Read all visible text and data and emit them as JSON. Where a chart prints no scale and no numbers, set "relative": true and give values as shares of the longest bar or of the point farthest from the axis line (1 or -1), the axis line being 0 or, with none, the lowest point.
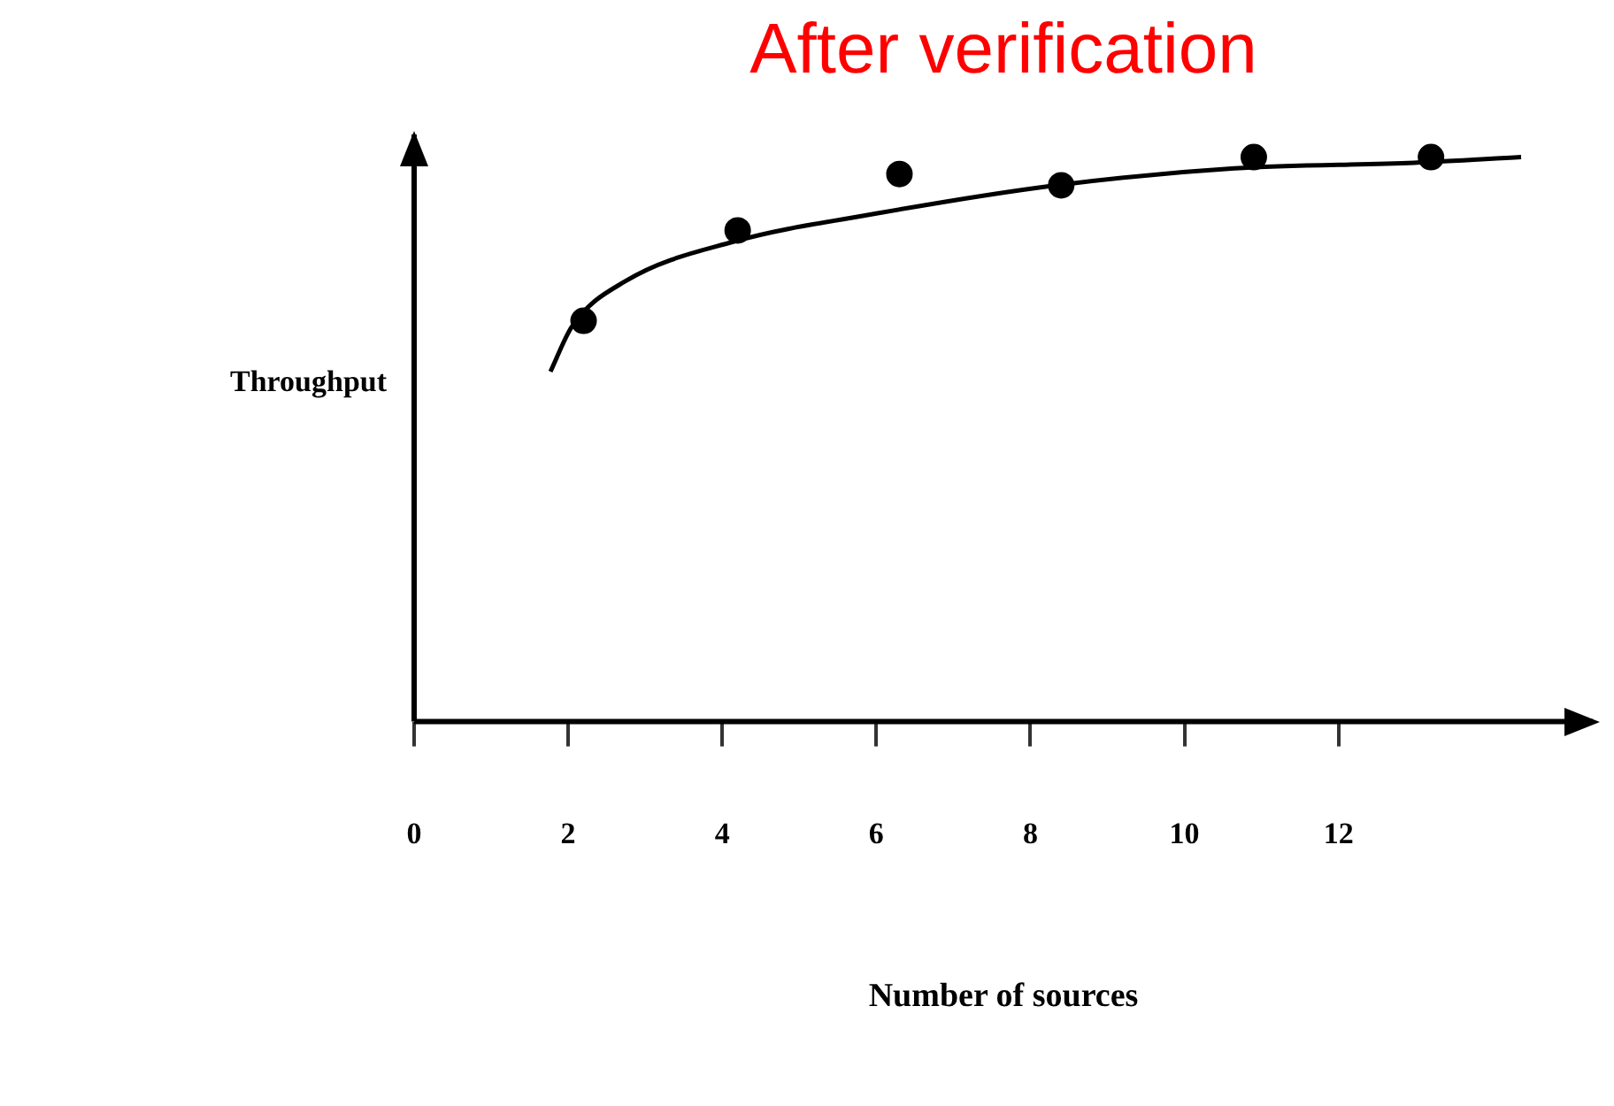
{
  "chart_data": {
    "type": "scatter",
    "title": "After verification",
    "xlabel": "Number of sources",
    "ylabel": "Throughput",
    "relative": true,
    "xlim": [
      0,
      15.3
    ],
    "xticks": [
      0,
      2,
      4,
      6,
      8,
      10,
      12
    ],
    "grid": false,
    "legend": false,
    "series": [
      {
        "type": "scatter",
        "color": "#000000",
        "marker": "circle",
        "x": [
          2.2,
          4.2,
          6.3,
          8.4,
          10.9,
          13.2
        ],
        "values": [
          0.71,
          0.87,
          0.97,
          0.95,
          1.0,
          1.0
        ]
      },
      {
        "type": "line",
        "color": "#000000",
        "marker": "none",
        "line_style": "solid",
        "x": [
          1.77,
          2.05,
          2.74,
          4.14,
          6.0,
          8.33,
          10.65,
          12.98,
          14.37
        ],
        "values": [
          0.62,
          0.7,
          0.78,
          0.85,
          0.9,
          0.95,
          0.98,
          0.99,
          1.0
        ]
      }
    ]
  }
}
